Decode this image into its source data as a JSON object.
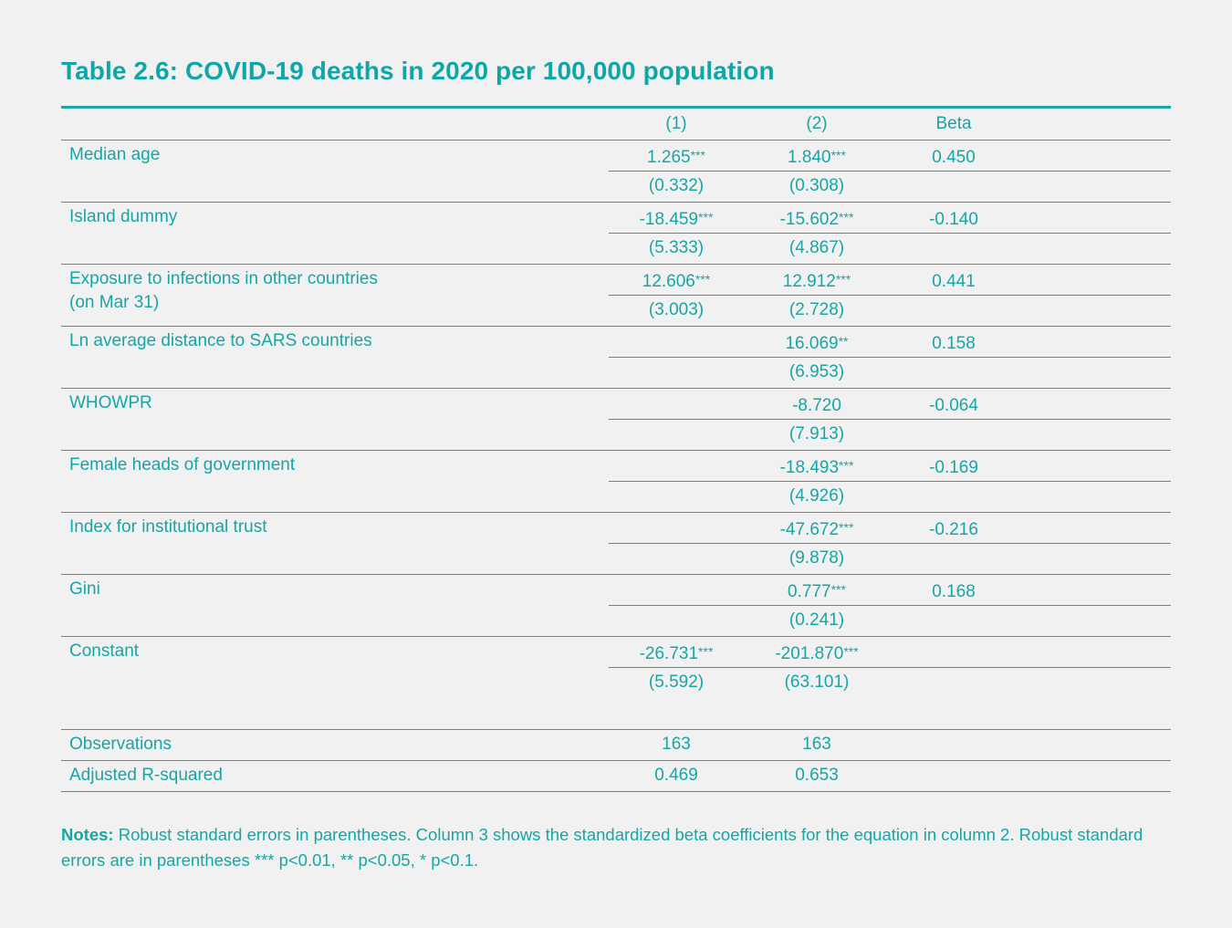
{
  "title": "Table 2.6: COVID-19 deaths in 2020 per 100,000 population",
  "colors": {
    "accent": "#17a5a5",
    "background": "#f1f1f1"
  },
  "header": [
    "(1)",
    "(2)",
    "Beta"
  ],
  "variables": [
    {
      "label": [
        "Median age"
      ],
      "coef": [
        [
          "1.265",
          "***"
        ],
        [
          "1.840",
          "***"
        ],
        [
          "0.450",
          ""
        ]
      ],
      "se": [
        "(0.332)",
        "(0.308)",
        ""
      ]
    },
    {
      "label": [
        "Island dummy"
      ],
      "coef": [
        [
          "-18.459",
          "***"
        ],
        [
          "-15.602",
          "***"
        ],
        [
          "-0.140",
          ""
        ]
      ],
      "se": [
        "(5.333)",
        "(4.867)",
        ""
      ]
    },
    {
      "label": [
        "Exposure to infections in other countries",
        "(on Mar 31)"
      ],
      "coef": [
        [
          "12.606",
          "***"
        ],
        [
          "12.912",
          "***"
        ],
        [
          "0.441",
          ""
        ]
      ],
      "se": [
        "(3.003)",
        "(2.728)",
        ""
      ]
    },
    {
      "label": [
        "Ln average distance to SARS countries"
      ],
      "coef": [
        [
          "",
          ""
        ],
        [
          "16.069",
          "**"
        ],
        [
          "0.158",
          ""
        ]
      ],
      "se": [
        "",
        "(6.953)",
        ""
      ]
    },
    {
      "label": [
        "WHOWPR"
      ],
      "coef": [
        [
          "",
          ""
        ],
        [
          "-8.720",
          ""
        ],
        [
          "-0.064",
          ""
        ]
      ],
      "se": [
        "",
        "(7.913)",
        ""
      ]
    },
    {
      "label": [
        "Female heads of government"
      ],
      "coef": [
        [
          "",
          ""
        ],
        [
          "-18.493",
          "***"
        ],
        [
          "-0.169",
          ""
        ]
      ],
      "se": [
        "",
        "(4.926)",
        ""
      ]
    },
    {
      "label": [
        "Index for institutional trust"
      ],
      "coef": [
        [
          "",
          ""
        ],
        [
          "-47.672",
          "***"
        ],
        [
          "-0.216",
          ""
        ]
      ],
      "se": [
        "",
        "(9.878)",
        ""
      ]
    },
    {
      "label": [
        "Gini"
      ],
      "coef": [
        [
          "",
          ""
        ],
        [
          "0.777",
          "***"
        ],
        [
          "0.168",
          ""
        ]
      ],
      "se": [
        "",
        "(0.241)",
        ""
      ]
    },
    {
      "label": [
        "Constant"
      ],
      "coef": [
        [
          "-26.731",
          "***"
        ],
        [
          "-201.870",
          "***"
        ],
        [
          "",
          ""
        ]
      ],
      "se": [
        "(5.592)",
        "(63.101)",
        ""
      ]
    }
  ],
  "stats": [
    {
      "label": "Observations",
      "values": [
        "163",
        "163",
        ""
      ]
    },
    {
      "label": "Adjusted R-squared",
      "values": [
        "0.469",
        "0.653",
        ""
      ]
    }
  ],
  "notes": {
    "label": "Notes:",
    "text": " Robust standard errors in parentheses. Column 3 shows the standardized beta coefficients for the equation in column 2. Robust standard errors are in parentheses *** p<0.01, ** p<0.05, * p<0.1."
  }
}
